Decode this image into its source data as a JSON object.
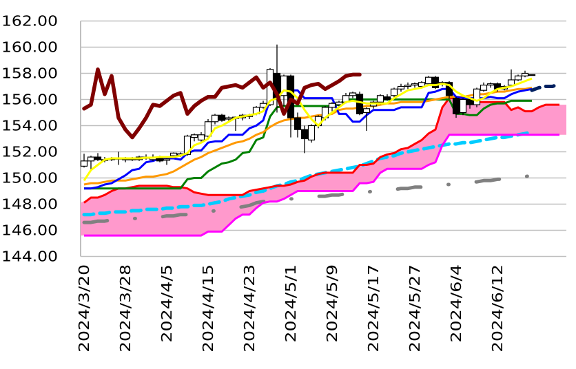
{
  "chart_data": {
    "type": "candlestick-line",
    "title": "",
    "xlabel": "",
    "ylabel": "",
    "ylim": [
      144,
      162
    ],
    "y_ticks": [
      "144.00",
      "146.00",
      "148.00",
      "150.00",
      "152.00",
      "154.00",
      "156.00",
      "158.00",
      "160.00",
      "162.00"
    ],
    "x_ticks": [
      {
        "label": "2024/3/20",
        "index": 0
      },
      {
        "label": "2024/3/28",
        "index": 6
      },
      {
        "label": "2024/4/5",
        "index": 12
      },
      {
        "label": "2024/4/15",
        "index": 18
      },
      {
        "label": "2024/4/23",
        "index": 24
      },
      {
        "label": "2024/5/1",
        "index": 30
      },
      {
        "label": "2024/5/9",
        "index": 36
      },
      {
        "label": "2024/5/17",
        "index": 42
      },
      {
        "label": "2024/5/27",
        "index": 48
      },
      {
        "label": "2024/6/4",
        "index": 54
      },
      {
        "label": "2024/6/12",
        "index": 60
      }
    ],
    "grid": true,
    "legend": "none",
    "category_count": 70,
    "colors": {
      "up_candle": "#ffffff",
      "down_candle": "#000000",
      "cloud": "#ff99cc",
      "chikou": "#800000",
      "yellow": "#ffff00",
      "blue": "#0000ff",
      "green": "#008000",
      "orange": "#ff9900",
      "red": "#ff0000",
      "magenta": "#ff00ff",
      "cyan": "#00ccff",
      "gray": "#808080",
      "navy": "#002060"
    },
    "candles_ohlc": [
      [
        150.9,
        151.85,
        150.8,
        151.3
      ],
      [
        151.3,
        151.7,
        150.6,
        151.6
      ],
      [
        151.6,
        151.9,
        151.3,
        151.4
      ],
      [
        151.4,
        151.6,
        151.2,
        151.35
      ],
      [
        151.4,
        151.6,
        151.3,
        151.5
      ],
      [
        151.45,
        152.0,
        151.0,
        151.5
      ],
      [
        151.4,
        151.6,
        151.2,
        151.45
      ],
      [
        151.4,
        151.6,
        151.3,
        151.45
      ],
      [
        151.4,
        151.7,
        151.3,
        151.6
      ],
      [
        151.6,
        151.8,
        151.4,
        151.5
      ],
      [
        151.4,
        151.8,
        151.3,
        151.6
      ],
      [
        151.6,
        151.7,
        151.2,
        151.3
      ],
      [
        151.35,
        151.5,
        151.0,
        151.45
      ],
      [
        151.7,
        151.95,
        151.6,
        151.9
      ],
      [
        151.75,
        151.95,
        151.6,
        151.85
      ],
      [
        151.8,
        153.3,
        151.7,
        153.2
      ],
      [
        153.1,
        153.4,
        152.8,
        153.3
      ],
      [
        152.9,
        153.5,
        152.7,
        153.3
      ],
      [
        153.2,
        154.5,
        153.0,
        154.3
      ],
      [
        154.3,
        154.9,
        154.1,
        154.8
      ],
      [
        154.8,
        154.9,
        154.3,
        154.4
      ],
      [
        154.5,
        154.7,
        154.3,
        154.6
      ],
      [
        154.55,
        154.7,
        153.6,
        154.65
      ],
      [
        154.6,
        154.9,
        154.4,
        154.8
      ],
      [
        154.7,
        154.9,
        154.5,
        154.8
      ],
      [
        154.9,
        155.5,
        154.8,
        155.4
      ],
      [
        155.4,
        155.9,
        155.3,
        155.7
      ],
      [
        155.6,
        158.4,
        155.5,
        158.3
      ],
      [
        158.0,
        160.2,
        155.0,
        156.0
      ],
      [
        156.3,
        157.9,
        155.5,
        157.8
      ],
      [
        157.8,
        157.9,
        153.1,
        154.6
      ],
      [
        154.6,
        155.0,
        153.1,
        153.7
      ],
      [
        153.7,
        154.0,
        151.9,
        153.0
      ],
      [
        152.9,
        154.1,
        152.7,
        154.0
      ],
      [
        154.0,
        154.8,
        153.8,
        154.7
      ],
      [
        154.6,
        155.5,
        154.4,
        155.4
      ],
      [
        155.4,
        155.8,
        155.1,
        155.7
      ],
      [
        155.6,
        155.9,
        155.4,
        155.8
      ],
      [
        155.8,
        156.5,
        155.7,
        156.3
      ],
      [
        156.3,
        156.6,
        156.1,
        156.5
      ],
      [
        156.4,
        156.6,
        154.8,
        154.9
      ],
      [
        155.0,
        155.4,
        153.6,
        155.3
      ],
      [
        155.5,
        155.9,
        155.3,
        155.8
      ],
      [
        155.8,
        156.4,
        155.6,
        156.3
      ],
      [
        156.2,
        156.4,
        155.9,
        156.0
      ],
      [
        156.3,
        156.9,
        156.1,
        156.8
      ],
      [
        156.8,
        157.2,
        156.6,
        157.0
      ],
      [
        157.0,
        157.3,
        156.8,
        157.1
      ],
      [
        157.1,
        157.3,
        156.9,
        157.2
      ],
      [
        157.0,
        157.4,
        156.9,
        157.3
      ],
      [
        157.2,
        157.8,
        157.1,
        157.7
      ],
      [
        157.7,
        157.8,
        156.8,
        156.9
      ],
      [
        157.2,
        157.4,
        157.0,
        157.3
      ],
      [
        157.3,
        157.4,
        156.1,
        156.3
      ],
      [
        156.1,
        156.2,
        154.6,
        154.9
      ],
      [
        155.0,
        156.1,
        154.8,
        156.0
      ],
      [
        156.0,
        156.1,
        155.3,
        155.6
      ],
      [
        155.6,
        156.9,
        155.4,
        156.8
      ],
      [
        156.7,
        157.3,
        156.6,
        157.1
      ],
      [
        157.1,
        157.3,
        156.9,
        157.2
      ],
      [
        157.2,
        157.3,
        156.6,
        156.8
      ],
      [
        156.8,
        157.1,
        156.7,
        157.0
      ],
      [
        157.1,
        158.3,
        157.0,
        157.5
      ],
      [
        157.5,
        157.9,
        157.4,
        157.8
      ],
      [
        157.8,
        158.2,
        157.7,
        158.0
      ],
      [
        157.9,
        157.9,
        157.9,
        157.9
      ]
    ],
    "cloud": {
      "upper_series": "red",
      "lower_series": "magenta"
    },
    "series": [
      {
        "key": "gray",
        "style": "dash-dot",
        "values": [
          146.6,
          146.6,
          146.7,
          146.7,
          146.8,
          146.8,
          146.8,
          146.9,
          146.9,
          146.9,
          147.0,
          147.0,
          147.1,
          147.1,
          147.2,
          147.2,
          147.3,
          147.3,
          147.4,
          147.5,
          147.6,
          147.6,
          147.7,
          147.8,
          147.9,
          148.1,
          148.2,
          148.2,
          148.3,
          148.3,
          148.4,
          148.4,
          148.5,
          148.5,
          148.6,
          148.6,
          148.7,
          148.7,
          148.8,
          148.8,
          148.9,
          148.9,
          149.0,
          149.0,
          149.1,
          149.1,
          149.2,
          149.2,
          149.3,
          149.3,
          149.4,
          149.4,
          149.5,
          149.5,
          149.6,
          149.6,
          149.7,
          149.7,
          149.8,
          149.8,
          149.9,
          149.9,
          150.0,
          150.0,
          150.1,
          150.2,
          null,
          null,
          null,
          null
        ]
      },
      {
        "key": "cyan",
        "style": "dashed",
        "values": [
          147.2,
          147.2,
          147.3,
          147.3,
          147.4,
          147.4,
          147.4,
          147.5,
          147.5,
          147.6,
          147.6,
          147.6,
          147.7,
          147.7,
          147.8,
          147.8,
          147.9,
          147.9,
          148.0,
          148.1,
          148.2,
          148.4,
          148.5,
          148.6,
          148.7,
          148.9,
          149.0,
          149.2,
          149.4,
          149.5,
          149.7,
          149.8,
          150.0,
          150.2,
          150.3,
          150.4,
          150.5,
          150.6,
          150.7,
          150.8,
          150.9,
          151.1,
          151.3,
          151.5,
          151.6,
          151.7,
          151.9,
          152.0,
          152.1,
          152.2,
          152.3,
          152.4,
          152.5,
          152.6,
          152.6,
          152.7,
          152.7,
          152.8,
          152.9,
          153.0,
          153.1,
          153.1,
          153.2,
          153.3,
          153.4,
          153.5,
          null,
          null,
          null,
          null
        ]
      },
      {
        "key": "red",
        "style": "solid",
        "values": [
          148.1,
          148.5,
          148.5,
          148.7,
          149.0,
          149.2,
          149.2,
          149.3,
          149.4,
          149.4,
          149.4,
          149.4,
          149.4,
          149.3,
          149.3,
          149.2,
          148.9,
          148.8,
          148.7,
          148.7,
          148.7,
          148.7,
          148.7,
          148.7,
          149.0,
          149.1,
          149.2,
          149.3,
          149.4,
          149.4,
          149.5,
          149.7,
          149.8,
          150.1,
          150.3,
          150.4,
          150.4,
          150.4,
          150.4,
          150.4,
          151.0,
          151.0,
          151.1,
          151.6,
          151.8,
          151.9,
          152.2,
          152.3,
          152.6,
          152.9,
          153.4,
          153.7,
          155.4,
          156.1,
          156.1,
          156.1,
          155.9,
          155.8,
          155.8,
          155.8,
          155.8,
          155.8,
          155.2,
          155.4,
          155.1,
          155.1,
          155.4,
          155.6,
          155.6,
          155.6
        ]
      },
      {
        "key": "magenta",
        "style": "solid",
        "values": [
          145.6,
          145.6,
          145.6,
          145.6,
          145.6,
          145.6,
          145.6,
          145.6,
          145.6,
          145.6,
          145.6,
          145.6,
          145.6,
          145.6,
          145.6,
          145.6,
          145.6,
          145.6,
          145.9,
          145.9,
          145.9,
          146.4,
          146.9,
          147.2,
          147.2,
          147.7,
          148.1,
          148.2,
          148.2,
          148.4,
          148.7,
          149.0,
          149.0,
          149.0,
          149.0,
          149.0,
          149.0,
          149.0,
          149.0,
          149.0,
          149.6,
          149.6,
          149.7,
          150.4,
          150.7,
          150.7,
          150.7,
          150.7,
          150.7,
          150.7,
          151.0,
          151.2,
          152.5,
          153.3,
          153.3,
          153.3,
          153.3,
          153.3,
          153.3,
          153.3,
          153.3,
          153.3,
          153.3,
          153.3,
          153.3,
          153.3,
          153.3,
          153.3,
          153.3,
          153.3
        ]
      },
      {
        "key": "green",
        "style": "solid",
        "values": [
          149.2,
          149.2,
          149.2,
          149.2,
          149.2,
          149.2,
          149.2,
          149.2,
          149.2,
          149.2,
          149.2,
          149.2,
          149.2,
          149.2,
          149.2,
          149.9,
          150.0,
          150.0,
          150.5,
          150.8,
          151.1,
          151.2,
          151.4,
          151.9,
          152.0,
          152.9,
          153.1,
          154.7,
          155.4,
          155.5,
          155.5,
          155.5,
          155.5,
          155.5,
          155.5,
          155.5,
          155.5,
          155.6,
          156.0,
          156.0,
          156.0,
          156.0,
          156.0,
          156.0,
          156.0,
          156.0,
          156.0,
          156.0,
          156.0,
          156.0,
          156.0,
          156.0,
          156.0,
          156.0,
          154.9,
          154.9,
          154.8,
          154.8,
          155.3,
          155.6,
          155.7,
          155.7,
          155.9,
          155.9,
          155.9,
          155.9,
          null,
          null,
          null,
          null
        ]
      },
      {
        "key": "orange",
        "style": "solid",
        "values": [
          149.5,
          149.6,
          149.6,
          149.7,
          149.8,
          149.8,
          149.8,
          149.9,
          150.0,
          150.1,
          150.1,
          150.2,
          150.3,
          150.5,
          150.8,
          151.1,
          151.4,
          151.6,
          151.9,
          152.1,
          152.3,
          152.5,
          152.7,
          152.8,
          153.0,
          153.3,
          153.5,
          153.9,
          154.2,
          154.4,
          154.5,
          154.6,
          154.6,
          154.7,
          154.8,
          154.8,
          154.9,
          155.2,
          155.3,
          155.3,
          155.4,
          155.5,
          155.5,
          155.6,
          155.7,
          155.7,
          155.8,
          155.8,
          155.8,
          155.8,
          155.9,
          156.0,
          156.1,
          156.2,
          156.2,
          156.2,
          156.3,
          156.4,
          156.4,
          156.5,
          156.6,
          156.6,
          156.7,
          156.8,
          156.8,
          156.9,
          null,
          null,
          null,
          null
        ]
      },
      {
        "key": "blue",
        "style": "solid",
        "values": [
          149.2,
          149.2,
          149.3,
          149.5,
          149.6,
          149.9,
          150.2,
          150.6,
          150.7,
          151.2,
          151.3,
          151.5,
          151.5,
          151.5,
          151.4,
          151.9,
          152.1,
          152.1,
          152.7,
          152.8,
          152.8,
          153.3,
          153.3,
          153.3,
          153.8,
          154.0,
          154.4,
          156.0,
          156.9,
          156.9,
          156.7,
          156.7,
          156.1,
          156.1,
          156.1,
          156.1,
          156.1,
          154.9,
          154.9,
          154.3,
          154.3,
          154.8,
          155.2,
          155.2,
          155.2,
          155.2,
          155.4,
          155.4,
          155.4,
          155.4,
          156.5,
          156.6,
          156.8,
          156.8,
          156.2,
          156.1,
          156.1,
          156.1,
          156.1,
          156.2,
          156.1,
          156.1,
          156.4,
          156.6,
          156.7,
          156.8,
          null,
          null,
          null,
          null
        ]
      },
      {
        "key": "yellow",
        "style": "solid",
        "values": [
          149.8,
          150.6,
          151.0,
          151.4,
          151.5,
          151.5,
          151.5,
          151.5,
          151.5,
          151.55,
          151.55,
          151.6,
          151.6,
          151.6,
          151.7,
          151.9,
          152.5,
          152.7,
          153.0,
          153.8,
          154.0,
          154.3,
          154.6,
          154.7,
          154.8,
          154.9,
          155.1,
          155.9,
          156.1,
          156.7,
          156.6,
          156.1,
          155.2,
          154.5,
          154.0,
          154.6,
          155.0,
          155.4,
          155.8,
          155.9,
          155.8,
          155.7,
          155.7,
          155.7,
          155.7,
          156.1,
          156.4,
          156.7,
          156.8,
          156.9,
          157.1,
          157.1,
          157.2,
          157.1,
          156.6,
          156.3,
          156.1,
          155.9,
          156.1,
          156.5,
          156.8,
          156.9,
          157.0,
          157.2,
          157.4,
          157.6,
          null,
          null,
          null,
          null
        ]
      },
      {
        "key": "chikou",
        "style": "solid-thick",
        "values": [
          155.3,
          155.6,
          158.3,
          156.4,
          157.8,
          154.6,
          153.7,
          153.1,
          153.8,
          154.6,
          155.6,
          155.5,
          155.9,
          156.3,
          156.5,
          154.9,
          155.5,
          155.9,
          156.2,
          156.2,
          156.9,
          157.0,
          157.1,
          156.9,
          157.3,
          157.7,
          156.9,
          157.3,
          156.4,
          154.9,
          156.0,
          155.7,
          156.9,
          157.1,
          157.2,
          156.8,
          157.1,
          157.4,
          157.8,
          157.9,
          157.9,
          null,
          null,
          null,
          null,
          null,
          null,
          null,
          null,
          null,
          null,
          null,
          null,
          null,
          null,
          null,
          null,
          null,
          null,
          null,
          null,
          null,
          null,
          null,
          null,
          null,
          null,
          null,
          null,
          null
        ]
      },
      {
        "key": "navy",
        "style": "dashed",
        "values": [
          null,
          null,
          null,
          null,
          null,
          null,
          null,
          null,
          null,
          null,
          null,
          null,
          null,
          null,
          null,
          null,
          null,
          null,
          null,
          null,
          null,
          null,
          null,
          null,
          null,
          null,
          null,
          null,
          null,
          null,
          null,
          null,
          null,
          null,
          null,
          null,
          null,
          null,
          null,
          null,
          null,
          null,
          null,
          null,
          null,
          null,
          null,
          null,
          null,
          null,
          null,
          null,
          null,
          null,
          null,
          null,
          null,
          null,
          null,
          null,
          null,
          null,
          null,
          null,
          null,
          156.7,
          156.9,
          157.0,
          157.0,
          157.2
        ]
      }
    ]
  }
}
